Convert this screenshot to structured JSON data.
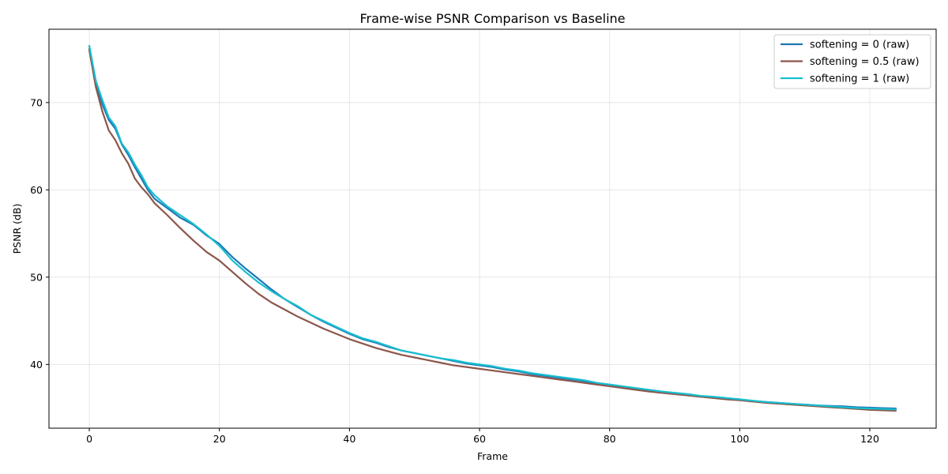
{
  "chart_data": {
    "type": "line",
    "title": "Frame-wise PSNR Comparison vs Baseline",
    "xlabel": "Frame",
    "ylabel": "PSNR (dB)",
    "xlim": [
      -6.2,
      130.2
    ],
    "ylim": [
      32.7,
      78.4
    ],
    "x_ticks": [
      0,
      20,
      40,
      60,
      80,
      100,
      120
    ],
    "y_ticks": [
      40,
      50,
      60,
      70
    ],
    "grid": true,
    "legend_position": "top-right",
    "x": [
      0,
      1,
      2,
      3,
      4,
      5,
      6,
      7,
      8,
      9,
      10,
      12,
      14,
      16,
      18,
      20,
      22,
      24,
      26,
      28,
      30,
      32,
      34,
      36,
      38,
      40,
      42,
      44,
      46,
      48,
      50,
      52,
      54,
      56,
      58,
      60,
      62,
      64,
      66,
      68,
      70,
      72,
      74,
      76,
      78,
      80,
      82,
      84,
      86,
      88,
      90,
      92,
      94,
      96,
      98,
      100,
      102,
      104,
      106,
      108,
      110,
      112,
      114,
      116,
      118,
      120,
      122,
      124
    ],
    "series": [
      {
        "name": "softening = 0 (raw)",
        "color": "#1f77b4",
        "values": [
          76.2,
          72.3,
          69.8,
          68.0,
          67.0,
          65.2,
          64.0,
          62.6,
          61.3,
          60.0,
          59.0,
          57.9,
          56.8,
          56.0,
          54.8,
          53.8,
          52.3,
          51.0,
          49.8,
          48.6,
          47.5,
          46.6,
          45.7,
          44.9,
          44.2,
          43.5,
          42.9,
          42.5,
          42.0,
          41.6,
          41.3,
          41.0,
          40.7,
          40.4,
          40.1,
          39.9,
          39.7,
          39.4,
          39.2,
          38.9,
          38.7,
          38.5,
          38.3,
          38.1,
          37.8,
          37.6,
          37.4,
          37.2,
          37.0,
          36.8,
          36.7,
          36.5,
          36.3,
          36.2,
          36.1,
          36.0,
          35.8,
          35.7,
          35.6,
          35.5,
          35.4,
          35.3,
          35.25,
          35.2,
          35.1,
          35.05,
          35.0,
          34.95
        ]
      },
      {
        "name": "softening = 0.5 (raw)",
        "color": "#8c564b",
        "values": [
          76.0,
          71.8,
          69.0,
          66.8,
          65.7,
          64.2,
          63.0,
          61.3,
          60.3,
          59.5,
          58.5,
          57.1,
          55.6,
          54.2,
          52.9,
          51.9,
          50.6,
          49.3,
          48.1,
          47.1,
          46.3,
          45.5,
          44.8,
          44.1,
          43.5,
          42.9,
          42.4,
          41.9,
          41.5,
          41.1,
          40.8,
          40.5,
          40.2,
          39.9,
          39.7,
          39.5,
          39.3,
          39.1,
          38.9,
          38.7,
          38.5,
          38.3,
          38.1,
          37.9,
          37.7,
          37.5,
          37.3,
          37.1,
          36.9,
          36.75,
          36.6,
          36.45,
          36.3,
          36.15,
          36.0,
          35.9,
          35.75,
          35.6,
          35.5,
          35.4,
          35.3,
          35.2,
          35.1,
          35.0,
          34.9,
          34.8,
          34.75,
          34.7
        ]
      },
      {
        "name": "softening = 1 (raw)",
        "color": "#17becf",
        "values": [
          76.5,
          72.5,
          70.3,
          68.3,
          67.3,
          65.3,
          64.3,
          62.9,
          61.7,
          60.3,
          59.4,
          58.1,
          57.1,
          56.1,
          54.9,
          53.6,
          51.9,
          50.6,
          49.4,
          48.4,
          47.5,
          46.7,
          45.7,
          45.0,
          44.3,
          43.6,
          43.0,
          42.6,
          42.1,
          41.6,
          41.3,
          41.0,
          40.7,
          40.5,
          40.2,
          40.0,
          39.8,
          39.5,
          39.3,
          39.0,
          38.8,
          38.6,
          38.4,
          38.2,
          37.9,
          37.7,
          37.5,
          37.3,
          37.1,
          36.9,
          36.75,
          36.6,
          36.4,
          36.3,
          36.15,
          36.0,
          35.85,
          35.7,
          35.6,
          35.5,
          35.4,
          35.3,
          35.2,
          35.1,
          35.0,
          34.95,
          34.9,
          34.85
        ]
      }
    ]
  }
}
